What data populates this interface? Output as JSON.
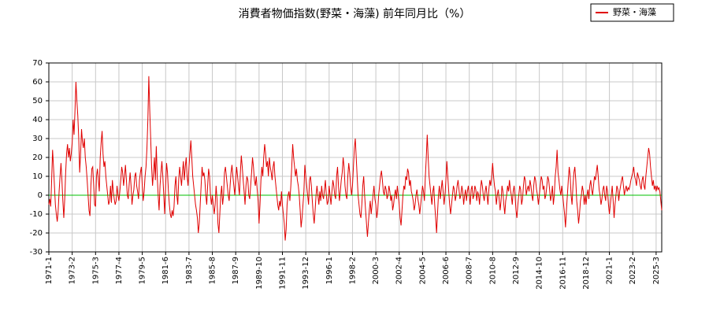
{
  "chart_data": {
    "type": "line",
    "title": "消費者物価指数(野菜・海藻) 前年同月比（%）",
    "categories": [
      "1971-1",
      null,
      null,
      null,
      null,
      null,
      null,
      null,
      null,
      null,
      null,
      null,
      null,
      null,
      null,
      null,
      null,
      null,
      null,
      null,
      null,
      null,
      null,
      null,
      null,
      "1973-2",
      null,
      null,
      null,
      null,
      null,
      null,
      null,
      null,
      null,
      null,
      null,
      null,
      null,
      null,
      null,
      null,
      null,
      null,
      null,
      null,
      null,
      null,
      null,
      null,
      "1975-3",
      null,
      null,
      null,
      null,
      null,
      null,
      null,
      null,
      null,
      null,
      null,
      null,
      null,
      null,
      null,
      null,
      null,
      null,
      null,
      null,
      null,
      null,
      null,
      null,
      "1977-4",
      null,
      null,
      null,
      null,
      null,
      null,
      null,
      null,
      null,
      null,
      null,
      null,
      null,
      null,
      null,
      null,
      null,
      null,
      null,
      null,
      null,
      null,
      null,
      null,
      "1979-5",
      null,
      null,
      null,
      null,
      null,
      null,
      null,
      null,
      null,
      null,
      null,
      null,
      null,
      null,
      null,
      null,
      null,
      null,
      null,
      null,
      null,
      null,
      null,
      null,
      "1981-6",
      null,
      null,
      null,
      null,
      null,
      null,
      null,
      null,
      null,
      null,
      null,
      null,
      null,
      null,
      null,
      null,
      null,
      null,
      null,
      null,
      null,
      null,
      null,
      null,
      "1983-7",
      null,
      null,
      null,
      null,
      null,
      null,
      null,
      null,
      null,
      null,
      null,
      null,
      null,
      null,
      null,
      null,
      null,
      null,
      null,
      null,
      null,
      null,
      null,
      null,
      "1985-8",
      null,
      null,
      null,
      null,
      null,
      null,
      null,
      null,
      null,
      null,
      null,
      null,
      null,
      null,
      null,
      null,
      null,
      null,
      null,
      null,
      null,
      null,
      null,
      null,
      "1987-9",
      null,
      null,
      null,
      null,
      null,
      null,
      null,
      null,
      null,
      null,
      null,
      null,
      null,
      null,
      null,
      null,
      null,
      null,
      null,
      null,
      null,
      null,
      null,
      null,
      "1989-10",
      null,
      null,
      null,
      null,
      null,
      null,
      null,
      null,
      null,
      null,
      null,
      null,
      null,
      null,
      null,
      null,
      null,
      null,
      null,
      null,
      null,
      null,
      null,
      null,
      "1991-11",
      null,
      null,
      null,
      null,
      null,
      null,
      null,
      null,
      null,
      null,
      null,
      null,
      null,
      null,
      null,
      null,
      null,
      null,
      null,
      null,
      null,
      null,
      null,
      null,
      "1993-12",
      null,
      null,
      null,
      null,
      null,
      null,
      null,
      null,
      null,
      null,
      null,
      null,
      null,
      null,
      null,
      null,
      null,
      null,
      null,
      null,
      null,
      null,
      null,
      null,
      "1996-1",
      null,
      null,
      null,
      null,
      null,
      null,
      null,
      null,
      null,
      null,
      null,
      null,
      null,
      null,
      null,
      null,
      null,
      null,
      null,
      null,
      null,
      null,
      null,
      null,
      "1998-2",
      null,
      null,
      null,
      null,
      null,
      null,
      null,
      null,
      null,
      null,
      null,
      null,
      null,
      null,
      null,
      null,
      null,
      null,
      null,
      null,
      null,
      null,
      null,
      null,
      "2000-3",
      null,
      null,
      null,
      null,
      null,
      null,
      null,
      null,
      null,
      null,
      null,
      null,
      null,
      null,
      null,
      null,
      null,
      null,
      null,
      null,
      null,
      null,
      null,
      null,
      "2002-4",
      null,
      null,
      null,
      null,
      null,
      null,
      null,
      null,
      null,
      null,
      null,
      null,
      null,
      null,
      null,
      null,
      null,
      null,
      null,
      null,
      null,
      null,
      null,
      null,
      "2004-5",
      null,
      null,
      null,
      null,
      null,
      null,
      null,
      null,
      null,
      null,
      null,
      null,
      null,
      null,
      null,
      null,
      null,
      null,
      null,
      null,
      null,
      null,
      null,
      null,
      "2006-6",
      null,
      null,
      null,
      null,
      null,
      null,
      null,
      null,
      null,
      null,
      null,
      null,
      null,
      null,
      null,
      null,
      null,
      null,
      null,
      null,
      null,
      null,
      null,
      null,
      "2008-7",
      null,
      null,
      null,
      null,
      null,
      null,
      null,
      null,
      null,
      null,
      null,
      null,
      null,
      null,
      null,
      null,
      null,
      null,
      null,
      null,
      null,
      null,
      null,
      null,
      "2010-8",
      null,
      null,
      null,
      null,
      null,
      null,
      null,
      null,
      null,
      null,
      null,
      null,
      null,
      null,
      null,
      null,
      null,
      null,
      null,
      null,
      null,
      null,
      null,
      null,
      "2012-9",
      null,
      null,
      null,
      null,
      null,
      null,
      null,
      null,
      null,
      null,
      null,
      null,
      null,
      null,
      null,
      null,
      null,
      null,
      null,
      null,
      null,
      null,
      null,
      null,
      "2014-10",
      null,
      null,
      null,
      null,
      null,
      null,
      null,
      null,
      null,
      null,
      null,
      null,
      null,
      null,
      null,
      null,
      null,
      null,
      null,
      null,
      null,
      null,
      null,
      null,
      "2016-11",
      null,
      null,
      null,
      null,
      null,
      null,
      null,
      null,
      null,
      null,
      null,
      null,
      null,
      null,
      null,
      null,
      null,
      null,
      null,
      null,
      null,
      null,
      null,
      null,
      "2018-12",
      null,
      null,
      null,
      null,
      null,
      null,
      null,
      null,
      null,
      null,
      null,
      null,
      null,
      null,
      null,
      null,
      null,
      null,
      null,
      null,
      null,
      null,
      null,
      null,
      "2021-1",
      null,
      null,
      null,
      null,
      null,
      null,
      null,
      null,
      null,
      null,
      null,
      null,
      null,
      null,
      null,
      null,
      null,
      null,
      null,
      null,
      null,
      null,
      null,
      null,
      "2023-2",
      null,
      null,
      null,
      null,
      null,
      null,
      null,
      null,
      null,
      null,
      null,
      null,
      null,
      null,
      null,
      null,
      null,
      null,
      null,
      null,
      null,
      null,
      null,
      null,
      "2025-3",
      null,
      null,
      null,
      null,
      null,
      null
    ],
    "series": [
      {
        "name": "野菜・海藻",
        "color": "#e00000",
        "values": [
          -5,
          -2,
          -6,
          8,
          24,
          15,
          5,
          -5,
          -10,
          -14,
          -8,
          2,
          10,
          17,
          8,
          -3,
          -12,
          -2,
          12,
          22,
          27,
          20,
          25,
          18,
          22,
          28,
          40,
          32,
          45,
          60,
          50,
          42,
          30,
          12,
          22,
          35,
          28,
          25,
          30,
          20,
          15,
          8,
          0,
          -8,
          -11,
          5,
          14,
          15,
          5,
          -5,
          -6,
          10,
          14,
          8,
          2,
          20,
          28,
          34,
          22,
          15,
          18,
          10,
          5,
          0,
          -5,
          -3,
          5,
          -4,
          8,
          2,
          -2,
          -5,
          -3,
          5,
          0,
          -3,
          2,
          8,
          15,
          12,
          5,
          10,
          16,
          8,
          0,
          -2,
          6,
          12,
          5,
          -5,
          0,
          3,
          10,
          12,
          5,
          2,
          -2,
          8,
          12,
          15,
          5,
          -3,
          2,
          10,
          15,
          25,
          40,
          63,
          45,
          30,
          15,
          5,
          12,
          20,
          8,
          26,
          10,
          0,
          -8,
          5,
          12,
          18,
          10,
          0,
          -10,
          5,
          17,
          12,
          2,
          -5,
          -10,
          -12,
          -8,
          -11,
          -6,
          5,
          10,
          0,
          -5,
          8,
          15,
          10,
          5,
          12,
          18,
          8,
          15,
          20,
          10,
          5,
          15,
          22,
          29,
          20,
          10,
          5,
          0,
          -5,
          -8,
          -12,
          -20,
          -15,
          -5,
          5,
          15,
          10,
          12,
          8,
          0,
          -5,
          5,
          14,
          10,
          0,
          -5,
          0,
          -5,
          -10,
          -5,
          5,
          -2,
          -15,
          -20,
          -10,
          0,
          5,
          -5,
          0,
          12,
          15,
          10,
          5,
          0,
          -3,
          5,
          12,
          16,
          10,
          5,
          0,
          8,
          15,
          10,
          5,
          0,
          12,
          21,
          15,
          8,
          2,
          -5,
          5,
          10,
          8,
          0,
          -2,
          5,
          12,
          20,
          15,
          8,
          5,
          10,
          3,
          -3,
          -15,
          -5,
          8,
          15,
          10,
          20,
          27,
          22,
          15,
          18,
          10,
          20,
          15,
          12,
          8,
          15,
          18,
          10,
          5,
          0,
          -5,
          -8,
          -3,
          -6,
          2,
          -5,
          -10,
          -15,
          -24,
          -18,
          -5,
          0,
          2,
          -3,
          5,
          15,
          27,
          20,
          15,
          10,
          14,
          8,
          5,
          0,
          -8,
          -17,
          -12,
          -5,
          2,
          16,
          10,
          5,
          0,
          -5,
          8,
          10,
          5,
          -3,
          -10,
          -15,
          -8,
          0,
          5,
          0,
          -5,
          2,
          -3,
          5,
          0,
          -2,
          3,
          8,
          0,
          -5,
          -3,
          5,
          0,
          -5,
          2,
          8,
          5,
          0,
          -2,
          10,
          15,
          5,
          -3,
          2,
          8,
          12,
          20,
          15,
          5,
          0,
          -2,
          10,
          17,
          12,
          5,
          0,
          5,
          15,
          25,
          30,
          20,
          10,
          0,
          -5,
          -10,
          -12,
          -5,
          5,
          10,
          0,
          -8,
          -15,
          -22,
          -15,
          -8,
          -3,
          -10,
          -5,
          0,
          5,
          -2,
          -5,
          -12,
          -8,
          0,
          5,
          10,
          13,
          8,
          2,
          0,
          5,
          3,
          -2,
          0,
          5,
          2,
          -3,
          0,
          -8,
          -5,
          0,
          3,
          -2,
          5,
          0,
          -5,
          -12,
          -16,
          -8,
          0,
          5,
          3,
          10,
          8,
          14,
          12,
          5,
          8,
          2,
          0,
          -3,
          -8,
          -5,
          0,
          3,
          -2,
          -5,
          -10,
          -5,
          0,
          5,
          2,
          -3,
          10,
          20,
          32,
          20,
          10,
          5,
          0,
          -5,
          2,
          5,
          -5,
          -12,
          -20,
          -10,
          0,
          5,
          -2,
          3,
          8,
          2,
          -5,
          0,
          8,
          18,
          10,
          2,
          -5,
          -10,
          -5,
          0,
          5,
          3,
          -3,
          0,
          5,
          8,
          3,
          -2,
          0,
          5,
          2,
          -5,
          0,
          3,
          -3,
          2,
          5,
          0,
          -5,
          3,
          5,
          -2,
          0,
          5,
          3,
          -3,
          2,
          0,
          -5,
          3,
          8,
          5,
          0,
          -3,
          2,
          5,
          0,
          -5,
          3,
          8,
          5,
          10,
          17,
          10,
          5,
          2,
          -5,
          0,
          3,
          -2,
          -8,
          -3,
          5,
          2,
          -5,
          -10,
          -3,
          0,
          5,
          2,
          8,
          3,
          0,
          -5,
          2,
          5,
          0,
          -8,
          -12,
          -5,
          0,
          5,
          3,
          -5,
          -2,
          5,
          10,
          8,
          0,
          3,
          5,
          2,
          8,
          5,
          0,
          -3,
          5,
          10,
          8,
          3,
          0,
          -5,
          0,
          5,
          10,
          8,
          3,
          5,
          -2,
          0,
          5,
          10,
          8,
          3,
          -3,
          0,
          5,
          -5,
          0,
          10,
          15,
          24,
          12,
          8,
          3,
          0,
          5,
          0,
          -5,
          -10,
          -17,
          -8,
          0,
          8,
          15,
          10,
          0,
          -5,
          5,
          12,
          15,
          8,
          -3,
          -8,
          -15,
          -10,
          -3,
          0,
          5,
          2,
          -5,
          0,
          -5,
          0,
          3,
          -2,
          5,
          8,
          3,
          0,
          5,
          10,
          8,
          12,
          16,
          10,
          3,
          0,
          -5,
          -2,
          3,
          5,
          0,
          -3,
          5,
          2,
          -5,
          -10,
          -5,
          0,
          5,
          -3,
          -12,
          -5,
          0,
          5,
          3,
          -3,
          2,
          5,
          8,
          10,
          5,
          0,
          3,
          5,
          2,
          4,
          3,
          5,
          8,
          10,
          12,
          15,
          10,
          8,
          5,
          12,
          10,
          8,
          5,
          3,
          8,
          10,
          5,
          3,
          10,
          15,
          20,
          25,
          22,
          15,
          10,
          5,
          8,
          3,
          5,
          2,
          5,
          3,
          4,
          2,
          -3,
          -8
        ]
      }
    ],
    "ylim": [
      -30,
      70
    ],
    "yticks": [
      -30,
      -20,
      -10,
      0,
      10,
      20,
      30,
      40,
      50,
      60,
      70
    ],
    "grid": true,
    "legend": "upper right",
    "reference_line": {
      "value": 0,
      "color": "#00c000"
    }
  }
}
